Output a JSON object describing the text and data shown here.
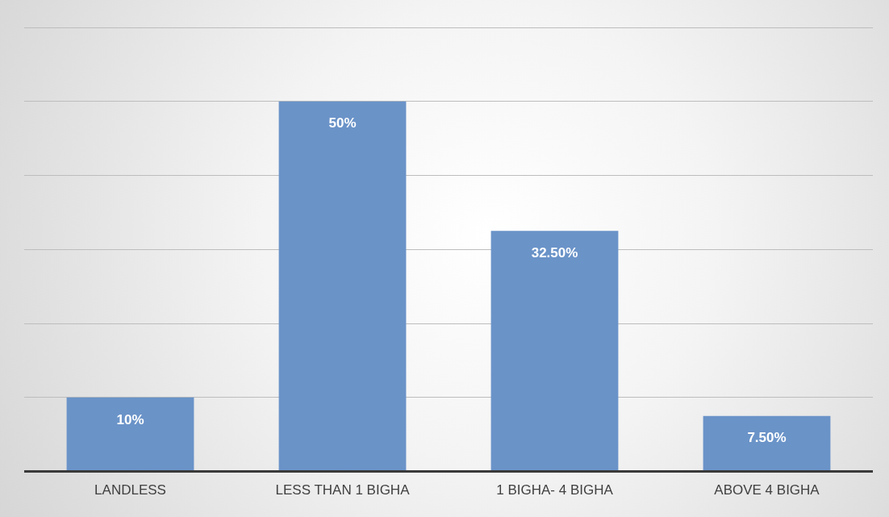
{
  "chart_data": {
    "type": "bar",
    "categories": [
      "LANDLESS",
      "LESS THAN 1 BIGHA",
      "1 BIGHA- 4 BIGHA",
      "ABOVE 4 BIGHA"
    ],
    "values": [
      10,
      50,
      32.5,
      7.5
    ],
    "value_labels": [
      "10%",
      "50%",
      "32.50%",
      "7.50%"
    ],
    "color": "#6a93c8",
    "grid": "y",
    "tick_labels": "x",
    "legend": false
  }
}
